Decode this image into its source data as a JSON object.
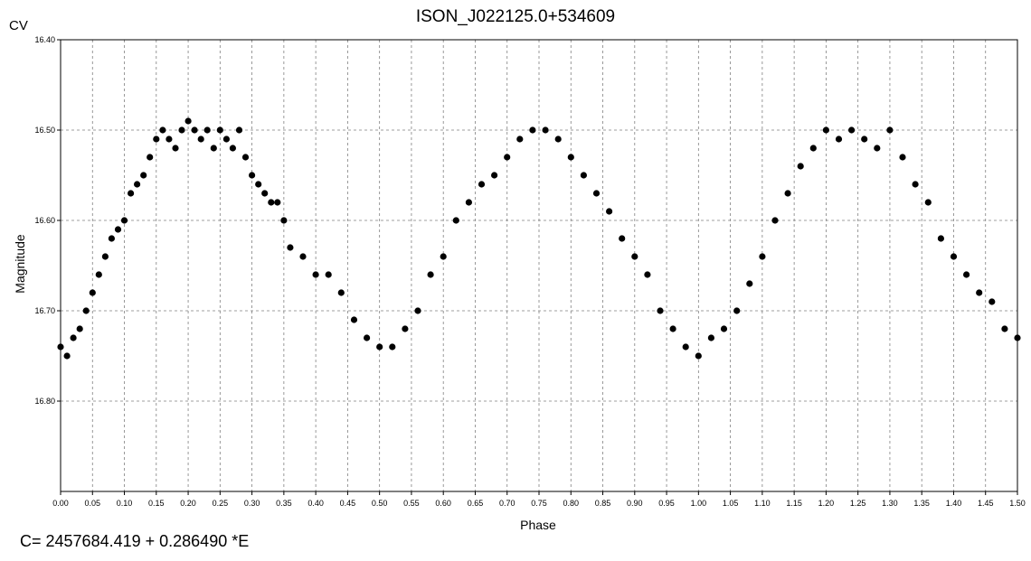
{
  "chart_data": {
    "type": "scatter",
    "title": "ISON_J022125.0+534609",
    "band_label": "CV",
    "xlabel": "Phase",
    "ylabel": "Magnitude",
    "xlim": [
      0.0,
      1.5
    ],
    "ylim": [
      16.9,
      16.4
    ],
    "y_inverted": true,
    "grid": true,
    "x_ticks": [
      "0.00",
      "0.05",
      "0.10",
      "0.15",
      "0.20",
      "0.25",
      "0.30",
      "0.35",
      "0.40",
      "0.45",
      "0.50",
      "0.55",
      "0.60",
      "0.65",
      "0.70",
      "0.75",
      "0.80",
      "0.85",
      "0.90",
      "0.95",
      "1.00",
      "1.05",
      "1.10",
      "1.15",
      "1.20",
      "1.25",
      "1.30",
      "1.35",
      "1.40",
      "1.45",
      "1.50"
    ],
    "y_ticks": [
      "16.40",
      "16.50",
      "16.60",
      "16.70",
      "16.80"
    ],
    "point_color": "#000000",
    "series": [
      {
        "x": [
          0.0,
          0.01,
          0.02,
          0.03,
          0.04,
          0.05,
          0.06,
          0.07,
          0.08,
          0.09,
          0.1,
          0.11,
          0.12,
          0.13,
          0.14,
          0.15,
          0.16,
          0.17,
          0.18,
          0.19,
          0.2,
          0.21,
          0.22,
          0.23,
          0.24,
          0.25,
          0.26,
          0.27,
          0.28,
          0.29,
          0.3,
          0.31,
          0.32,
          0.33,
          0.34,
          0.35,
          0.36,
          0.38,
          0.4,
          0.42,
          0.44,
          0.46,
          0.48,
          0.5,
          0.52,
          0.54,
          0.56,
          0.58,
          0.6,
          0.62,
          0.64,
          0.66,
          0.68,
          0.7,
          0.72,
          0.74,
          0.76,
          0.78,
          0.8,
          0.82,
          0.84,
          0.86,
          0.88,
          0.9,
          0.92,
          0.94,
          0.96,
          0.98,
          1.0,
          1.02,
          1.04,
          1.06,
          1.08,
          1.1,
          1.12,
          1.14,
          1.16,
          1.18,
          1.2,
          1.22,
          1.24,
          1.26,
          1.28,
          1.3,
          1.32,
          1.34,
          1.36,
          1.38,
          1.4,
          1.42,
          1.44,
          1.46,
          1.48,
          1.5
        ],
        "y": [
          16.74,
          16.75,
          16.73,
          16.72,
          16.7,
          16.68,
          16.66,
          16.64,
          16.62,
          16.61,
          16.6,
          16.57,
          16.56,
          16.55,
          16.53,
          16.51,
          16.5,
          16.51,
          16.52,
          16.5,
          16.49,
          16.5,
          16.51,
          16.5,
          16.52,
          16.5,
          16.51,
          16.52,
          16.5,
          16.53,
          16.55,
          16.56,
          16.57,
          16.58,
          16.58,
          16.6,
          16.63,
          16.64,
          16.66,
          16.66,
          16.68,
          16.71,
          16.73,
          16.74,
          16.74,
          16.72,
          16.7,
          16.66,
          16.64,
          16.6,
          16.58,
          16.56,
          16.55,
          16.53,
          16.51,
          16.5,
          16.5,
          16.51,
          16.53,
          16.55,
          16.57,
          16.59,
          16.62,
          16.64,
          16.66,
          16.7,
          16.72,
          16.74,
          16.75,
          16.73,
          16.72,
          16.7,
          16.67,
          16.64,
          16.6,
          16.57,
          16.54,
          16.52,
          16.5,
          16.51,
          16.5,
          16.51,
          16.52,
          16.5,
          16.53,
          16.56,
          16.58,
          16.62,
          16.64,
          16.66,
          16.68,
          16.69,
          16.72,
          16.73
        ]
      }
    ]
  },
  "footer": {
    "ephemeris": "C= 2457684.419 + 0.286490 *E"
  }
}
